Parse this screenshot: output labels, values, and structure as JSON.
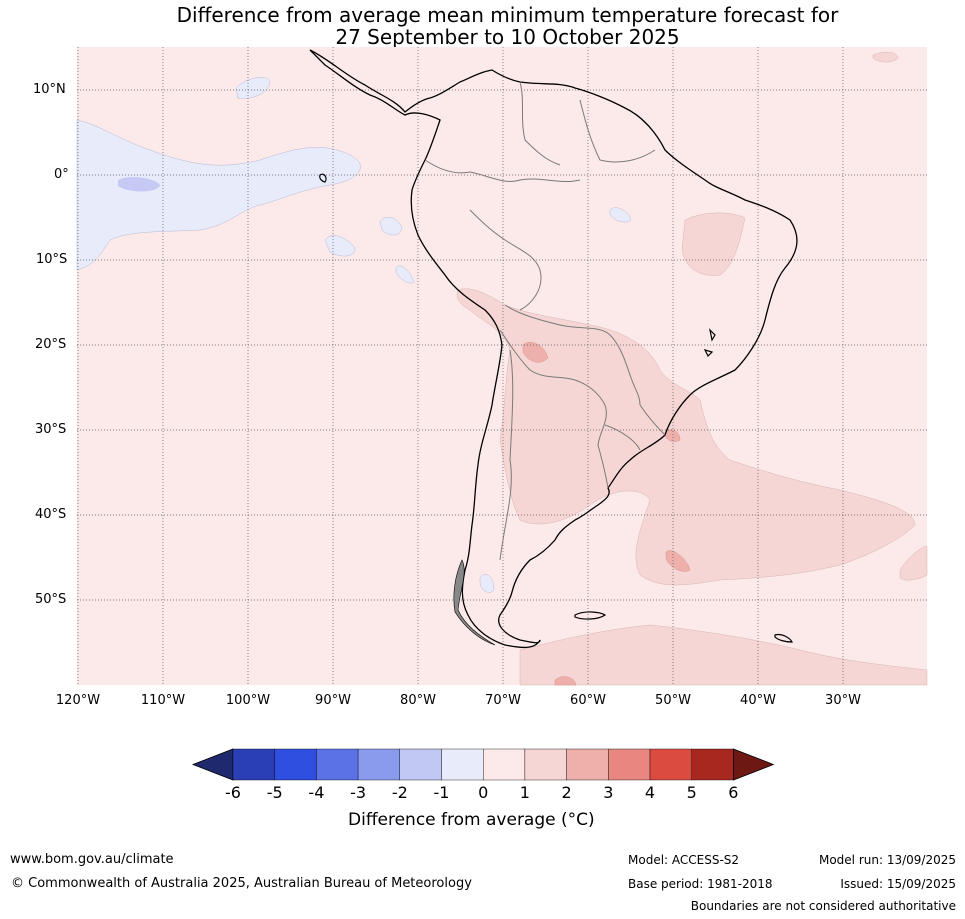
{
  "title_line1": "Difference from average mean minimum temperature forecast for",
  "title_line2": "27 September to 10 October 2025",
  "map": {
    "lat_labels": [
      "10°N",
      "0°",
      "10°S",
      "20°S",
      "30°S",
      "40°S",
      "50°S"
    ],
    "lon_labels": [
      "120°W",
      "110°W",
      "100°W",
      "90°W",
      "80°W",
      "70°W",
      "60°W",
      "50°W",
      "40°W",
      "30°W"
    ],
    "background_color": "#fbeae9",
    "ocean_cool_color": "#e8ebfa",
    "warm_color": "#f5d6d4",
    "warmer_color": "#eeb0ab"
  },
  "colorbar": {
    "ticks": [
      "-6",
      "-5",
      "-4",
      "-3",
      "-2",
      "-1",
      "0",
      "1",
      "2",
      "3",
      "4",
      "5",
      "6"
    ],
    "colors": [
      "#1f2a6e",
      "#2a3fb5",
      "#2f4fe0",
      "#5a72e6",
      "#8a9bee",
      "#c2c8f4",
      "#e8ebfa",
      "#fbeae9",
      "#f5d6d4",
      "#eeb0ab",
      "#e8877f",
      "#db4b3f",
      "#a8281f",
      "#6e1814"
    ],
    "label": "Difference from average (°C)"
  },
  "footer": {
    "website": "www.bom.gov.au/climate",
    "copyright": "© Commonwealth of Australia 2025, Australian Bureau of Meteorology",
    "model": "Model: ACCESS-S2",
    "base_period": "Base period: 1981-2018",
    "model_run": "Model run: 13/09/2025",
    "issued": "Issued: 15/09/2025",
    "disclaimer": "Boundaries are not considered authoritative"
  }
}
